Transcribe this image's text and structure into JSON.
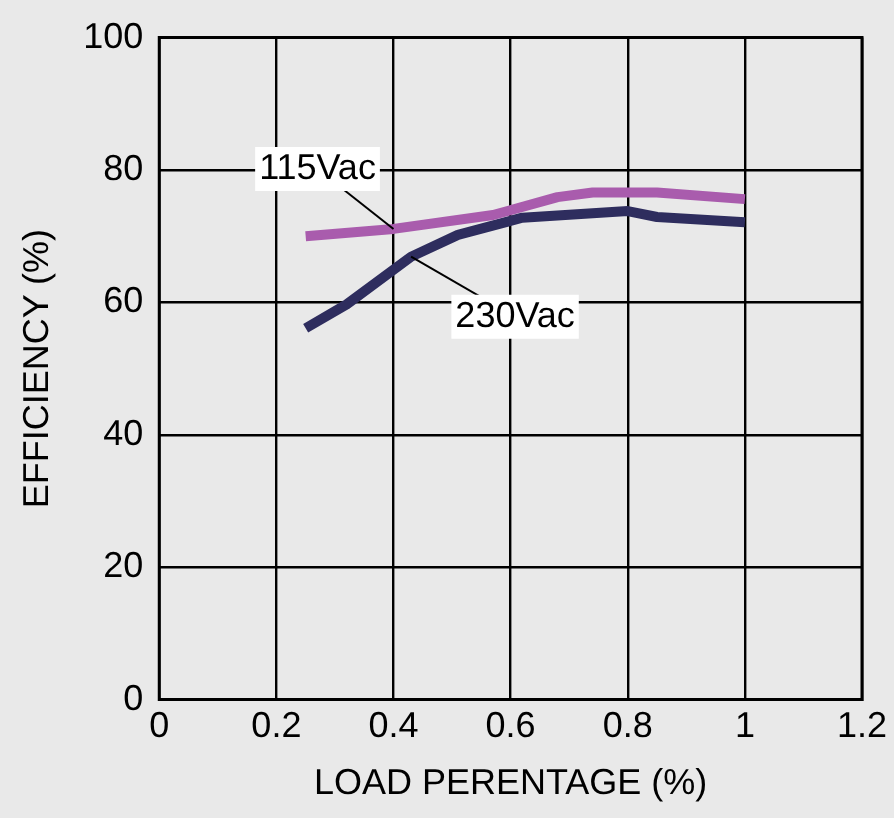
{
  "chart_data": {
    "type": "line",
    "xlabel": "LOAD PERENTAGE (%)",
    "ylabel": "EFFICIENCY (%)",
    "xlim": [
      0,
      1.2
    ],
    "xticks": [
      0,
      0.2,
      0.4,
      0.6,
      0.8,
      1,
      1.2
    ],
    "ylim": [
      0,
      100
    ],
    "yticks": [
      0,
      20,
      40,
      60,
      80,
      100
    ],
    "grid": true,
    "marker": "none",
    "line_style": "solid",
    "series": [
      {
        "color": "#a95cad",
        "x": [
          0.25,
          0.4,
          0.57,
          0.68,
          0.74,
          0.85,
          1.0
        ],
        "values": [
          70,
          71.1,
          73.2,
          75.9,
          76.6,
          76.6,
          75.6
        ]
      },
      {
        "color": "#2e2d5e",
        "x": [
          0.25,
          0.32,
          0.43,
          0.51,
          0.62,
          0.8,
          0.85,
          1.0
        ],
        "values": [
          56.1,
          59.7,
          66.9,
          70.2,
          72.8,
          73.8,
          72.9,
          72.1
        ]
      }
    ],
    "annotations": [
      {
        "text": "115Vac",
        "x": 0.4,
        "y": 71.1
      },
      {
        "text": "230Vac",
        "x": 0.43,
        "y": 66.9
      }
    ]
  }
}
